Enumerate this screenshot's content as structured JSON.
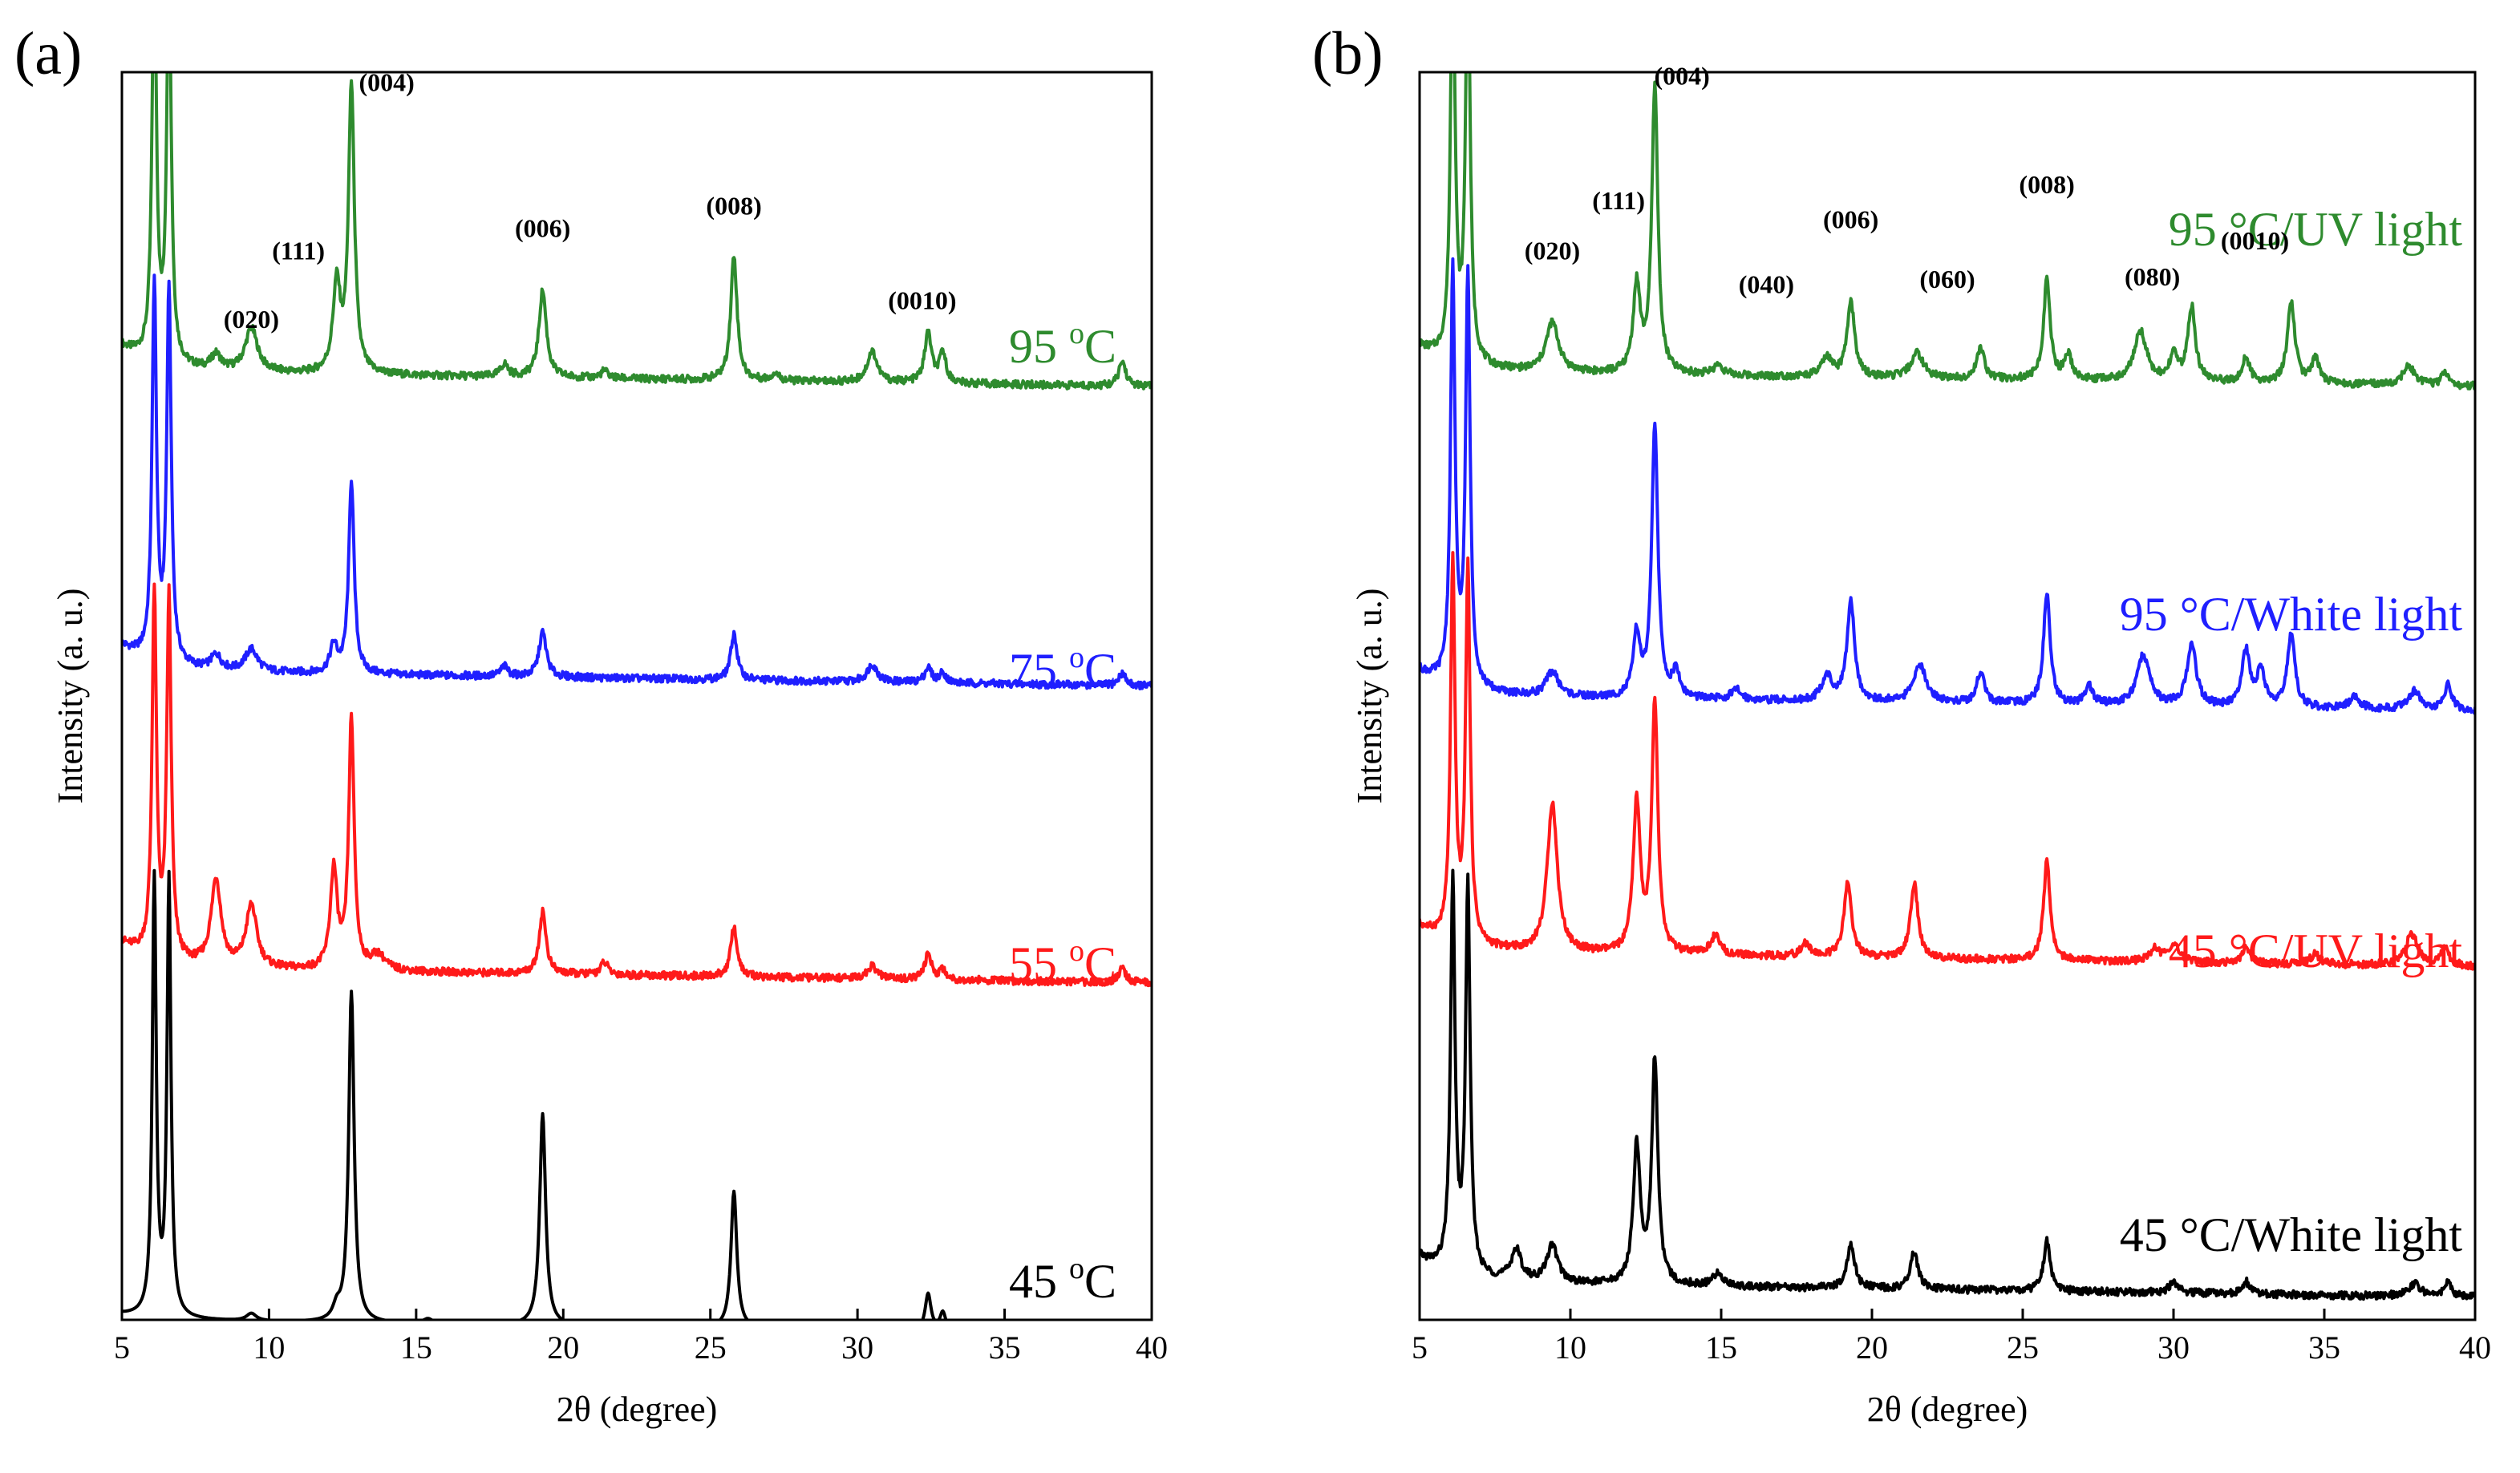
{
  "colors": {
    "green": "#2e8b2e",
    "blue": "#1f1fff",
    "red": "#ff1a1a",
    "black": "#000000"
  },
  "chart_data": [
    {
      "id": "a",
      "type": "line",
      "panel_label": "(a)",
      "title": "",
      "xlabel": "2θ (degree)",
      "ylabel": "Intensity (a. u.)",
      "xlim": [
        5,
        40
      ],
      "xticks": [
        5,
        10,
        15,
        20,
        25,
        30,
        35,
        40
      ],
      "yticks": "none",
      "grid": false,
      "series": [
        {
          "name": "95",
          "label": "95 oC",
          "label_main": "95 ",
          "label_sup": "o",
          "label_tail": "C",
          "color": "#2e8b2e",
          "offset": 0.725,
          "baseline": 0.035,
          "peaks": [
            [
              6.1,
              0.32,
              0.09
            ],
            [
              6.6,
              0.32,
              0.09
            ],
            [
              8.2,
              0.012,
              0.2
            ],
            [
              9.4,
              0.035,
              0.25
            ],
            [
              12.3,
              0.07,
              0.15
            ],
            [
              12.8,
              0.23,
              0.12
            ],
            [
              18.0,
              0.01,
              0.15
            ],
            [
              19.3,
              0.07,
              0.15
            ],
            [
              21.4,
              0.006,
              0.15
            ],
            [
              25.8,
              0.1,
              0.13
            ],
            [
              27.2,
              0.006,
              0.15
            ],
            [
              30.5,
              0.025,
              0.2
            ],
            [
              32.4,
              0.04,
              0.14
            ],
            [
              32.9,
              0.024,
              0.13
            ],
            [
              39.0,
              0.02,
              0.14
            ]
          ]
        },
        {
          "name": "75",
          "label": "75 oC",
          "label_main": "75 ",
          "label_sup": "o",
          "label_tail": "C",
          "color": "#1f1fff",
          "offset": 0.5,
          "baseline": 0.02,
          "peaks": [
            [
              6.1,
              0.3,
              0.09
            ],
            [
              6.6,
              0.3,
              0.09
            ],
            [
              8.2,
              0.012,
              0.2
            ],
            [
              9.4,
              0.018,
              0.25
            ],
            [
              12.2,
              0.022,
              0.15
            ],
            [
              12.8,
              0.155,
              0.11
            ],
            [
              18.0,
              0.008,
              0.15
            ],
            [
              19.3,
              0.036,
              0.15
            ],
            [
              25.8,
              0.037,
              0.13
            ],
            [
              30.5,
              0.014,
              0.2
            ],
            [
              32.4,
              0.012,
              0.14
            ],
            [
              32.9,
              0.008,
              0.13
            ],
            [
              39.0,
              0.01,
              0.14
            ]
          ]
        },
        {
          "name": "55",
          "label": "55 oC",
          "label_main": "55 ",
          "label_sup": "o",
          "label_tail": "C",
          "color": "#ff1a1a",
          "offset": 0.262,
          "baseline": 0.02,
          "peaks": [
            [
              6.1,
              0.29,
              0.09
            ],
            [
              6.6,
              0.29,
              0.09
            ],
            [
              8.2,
              0.07,
              0.2
            ],
            [
              9.4,
              0.05,
              0.22
            ],
            [
              12.2,
              0.08,
              0.14
            ],
            [
              12.8,
              0.2,
              0.11
            ],
            [
              13.7,
              0.012,
              0.3
            ],
            [
              19.3,
              0.05,
              0.14
            ],
            [
              21.4,
              0.01,
              0.15
            ],
            [
              25.8,
              0.04,
              0.13
            ],
            [
              30.5,
              0.01,
              0.2
            ],
            [
              32.4,
              0.02,
              0.14
            ],
            [
              32.9,
              0.008,
              0.13
            ],
            [
              39.0,
              0.012,
              0.14
            ]
          ]
        },
        {
          "name": "45",
          "label": "45 oC",
          "label_main": "45 ",
          "label_sup": "o",
          "label_tail": "C",
          "color": "#000000",
          "offset": 0.0,
          "baseline": 0.0,
          "peaks": [
            [
              6.1,
              0.35,
              0.08
            ],
            [
              6.6,
              0.35,
              0.08
            ],
            [
              9.4,
              0.006,
              0.2
            ],
            [
              12.3,
              0.01,
              0.15
            ],
            [
              12.8,
              0.265,
              0.11
            ],
            [
              15.4,
              0.004,
              0.2
            ],
            [
              19.3,
              0.17,
              0.12
            ],
            [
              25.8,
              0.11,
              0.12
            ],
            [
              27.2,
              0.005,
              0.15
            ],
            [
              32.4,
              0.03,
              0.12
            ],
            [
              32.9,
              0.015,
              0.12
            ],
            [
              39.0,
              0.008,
              0.12
            ]
          ]
        }
      ],
      "annotations": [
        {
          "text": "(020)",
          "x": 9.4,
          "y": 0.795
        },
        {
          "text": "(111)",
          "x": 11.0,
          "y": 0.85
        },
        {
          "text": "(004)",
          "x": 14.0,
          "y": 0.985
        },
        {
          "text": "(006)",
          "x": 19.3,
          "y": 0.868
        },
        {
          "text": "(008)",
          "x": 25.8,
          "y": 0.886
        },
        {
          "text": "(0010)",
          "x": 32.2,
          "y": 0.81
        }
      ]
    },
    {
      "id": "b",
      "type": "line",
      "panel_label": "(b)",
      "title": "",
      "xlabel": "2θ (degree)",
      "ylabel": "Intensity (a. u.)",
      "xlim": [
        5,
        40
      ],
      "xticks": [
        5,
        10,
        15,
        20,
        25,
        30,
        35,
        40
      ],
      "yticks": "none",
      "grid": false,
      "series": [
        {
          "name": "95-UV",
          "label": "95 °C/UV light",
          "label_main": "95 °C/UV light",
          "label_sup": "",
          "label_tail": "",
          "color": "#2e8b2e",
          "offset": 0.73,
          "baseline": 0.03,
          "peaks": [
            [
              6.1,
              0.33,
              0.09
            ],
            [
              6.6,
              0.33,
              0.09
            ],
            [
              9.4,
              0.04,
              0.25
            ],
            [
              12.2,
              0.07,
              0.14
            ],
            [
              12.8,
              0.23,
              0.12
            ],
            [
              14.9,
              0.008,
              0.2
            ],
            [
              18.5,
              0.015,
              0.2
            ],
            [
              19.3,
              0.06,
              0.15
            ],
            [
              21.5,
              0.02,
              0.25
            ],
            [
              23.6,
              0.025,
              0.15
            ],
            [
              25.8,
              0.08,
              0.13
            ],
            [
              26.5,
              0.02,
              0.15
            ],
            [
              28.9,
              0.04,
              0.25
            ],
            [
              30.0,
              0.02,
              0.15
            ],
            [
              30.6,
              0.06,
              0.15
            ],
            [
              32.4,
              0.02,
              0.15
            ],
            [
              33.9,
              0.065,
              0.15
            ],
            [
              34.7,
              0.02,
              0.15
            ],
            [
              37.8,
              0.015,
              0.25
            ],
            [
              39.0,
              0.01,
              0.15
            ]
          ]
        },
        {
          "name": "95-White",
          "label": "95 °C/White light",
          "label_main": "95 °C/White light",
          "label_sup": "",
          "label_tail": "",
          "color": "#1f1fff",
          "offset": 0.47,
          "baseline": 0.03,
          "peaks": [
            [
              6.1,
              0.33,
              0.09
            ],
            [
              6.6,
              0.33,
              0.09
            ],
            [
              9.4,
              0.02,
              0.25
            ],
            [
              12.2,
              0.05,
              0.14
            ],
            [
              12.8,
              0.22,
              0.12
            ],
            [
              13.5,
              0.02,
              0.15
            ],
            [
              15.5,
              0.008,
              0.2
            ],
            [
              18.5,
              0.02,
              0.2
            ],
            [
              19.3,
              0.08,
              0.15
            ],
            [
              21.6,
              0.03,
              0.25
            ],
            [
              23.6,
              0.025,
              0.15
            ],
            [
              25.8,
              0.09,
              0.13
            ],
            [
              27.2,
              0.015,
              0.15
            ],
            [
              29.0,
              0.04,
              0.25
            ],
            [
              30.6,
              0.05,
              0.18
            ],
            [
              32.4,
              0.045,
              0.15
            ],
            [
              32.9,
              0.03,
              0.15
            ],
            [
              33.9,
              0.06,
              0.15
            ],
            [
              36.0,
              0.01,
              0.2
            ],
            [
              38.0,
              0.015,
              0.25
            ],
            [
              39.1,
              0.02,
              0.15
            ]
          ]
        },
        {
          "name": "45-UV",
          "label": "45 °C/UV light",
          "label_main": "45 °C/UV light",
          "label_sup": "",
          "label_tail": "",
          "color": "#ff1a1a",
          "offset": 0.255,
          "baseline": 0.04,
          "peaks": [
            [
              6.1,
              0.3,
              0.09
            ],
            [
              6.6,
              0.3,
              0.09
            ],
            [
              9.4,
              0.12,
              0.2
            ],
            [
              12.2,
              0.12,
              0.14
            ],
            [
              12.8,
              0.2,
              0.12
            ],
            [
              14.8,
              0.015,
              0.2
            ],
            [
              17.8,
              0.01,
              0.2
            ],
            [
              19.2,
              0.06,
              0.15
            ],
            [
              21.4,
              0.06,
              0.15
            ],
            [
              25.8,
              0.08,
              0.13
            ],
            [
              29.4,
              0.01,
              0.2
            ],
            [
              30.0,
              0.015,
              0.2
            ],
            [
              32.4,
              0.012,
              0.15
            ],
            [
              34.7,
              0.008,
              0.2
            ],
            [
              37.9,
              0.025,
              0.25
            ],
            [
              39.0,
              0.015,
              0.15
            ]
          ]
        },
        {
          "name": "45-White",
          "label": "45 °C/White light",
          "label_main": "45 °C/White light",
          "label_sup": "",
          "label_tail": "",
          "color": "#000000",
          "offset": 0.0,
          "baseline": 0.03,
          "peaks": [
            [
              6.1,
              0.31,
              0.09
            ],
            [
              6.6,
              0.31,
              0.09
            ],
            [
              8.2,
              0.025,
              0.2
            ],
            [
              9.4,
              0.03,
              0.22
            ],
            [
              12.2,
              0.11,
              0.14
            ],
            [
              12.8,
              0.18,
              0.12
            ],
            [
              14.9,
              0.01,
              0.2
            ],
            [
              19.3,
              0.035,
              0.15
            ],
            [
              21.4,
              0.03,
              0.15
            ],
            [
              25.8,
              0.04,
              0.13
            ],
            [
              30.0,
              0.008,
              0.2
            ],
            [
              32.4,
              0.01,
              0.15
            ],
            [
              38.0,
              0.01,
              0.25
            ],
            [
              39.1,
              0.012,
              0.15
            ]
          ]
        }
      ],
      "annotations": [
        {
          "text": "(020)",
          "x": 9.4,
          "y": 0.85
        },
        {
          "text": "(111)",
          "x": 11.6,
          "y": 0.89
        },
        {
          "text": "(004)",
          "x": 13.7,
          "y": 0.99
        },
        {
          "text": "(040)",
          "x": 16.5,
          "y": 0.823
        },
        {
          "text": "(006)",
          "x": 19.3,
          "y": 0.875
        },
        {
          "text": "(060)",
          "x": 22.5,
          "y": 0.827
        },
        {
          "text": "(008)",
          "x": 25.8,
          "y": 0.903
        },
        {
          "text": "(080)",
          "x": 29.3,
          "y": 0.829
        },
        {
          "text": "(0010)",
          "x": 32.7,
          "y": 0.858
        }
      ]
    }
  ]
}
